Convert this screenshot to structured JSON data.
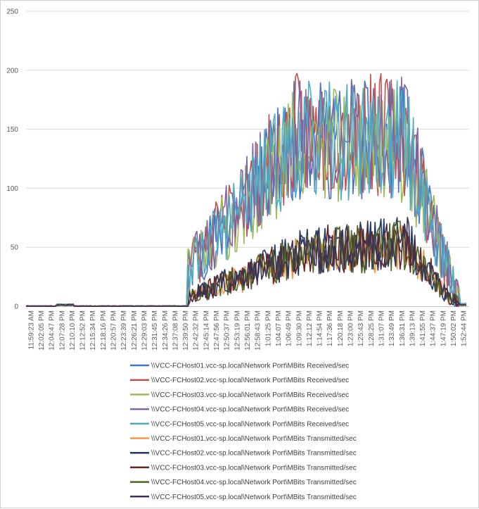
{
  "chart_data": {
    "type": "line",
    "title": "",
    "xlabel": "",
    "ylabel": "",
    "ylim": [
      0,
      250
    ],
    "yticks": [
      0,
      50,
      100,
      150,
      200,
      250
    ],
    "grid": true,
    "legend_position": "bottom",
    "x_tick_labels": [
      "11:59:23 AM",
      "12:02:05 PM",
      "12:04:47 PM",
      "12:07:28 PM",
      "12:10:10 PM",
      "12:12:52 PM",
      "12:15:34 PM",
      "12:18:16 PM",
      "12:20:57 PM",
      "12:23:39 PM",
      "12:26:21 PM",
      "12:29:03 PM",
      "12:31:45 PM",
      "12:34:26 PM",
      "12:37:08 PM",
      "12:39:50 PM",
      "12:42:32 PM",
      "12:45:14 PM",
      "12:47:56 PM",
      "12:50:37 PM",
      "12:53:19 PM",
      "12:56:01 PM",
      "12:58:43 PM",
      "1:01:25 PM",
      "1:04:07 PM",
      "1:06:49 PM",
      "1:09:30 PM",
      "1:12:12 PM",
      "1:14:54 PM",
      "1:17:36 PM",
      "1:20:18 PM",
      "1:23:00 PM",
      "1:25:43 PM",
      "1:28:25 PM",
      "1:31:07 PM",
      "1:33:49 PM",
      "1:36:31 PM",
      "1:39:13 PM",
      "1:41:55 PM",
      "1:44:37 PM",
      "1:47:19 PM",
      "1:50:02 PM",
      "1:52:44 PM"
    ],
    "series": [
      {
        "name": "\\\\VCC-FCHost01.vcc-sp.local\\Network Port\\MBits Received/sec",
        "color": "#4472C4",
        "kind": "received",
        "seed": 11,
        "peak": 1.0
      },
      {
        "name": "\\\\VCC-FCHost02.vcc-sp.local\\Network Port\\MBits Received/sec",
        "color": "#C0504D",
        "kind": "received",
        "seed": 23,
        "peak": 1.04
      },
      {
        "name": "\\\\VCC-FCHost03.vcc-sp.local\\Network Port\\MBits Received/sec",
        "color": "#9BBB59",
        "kind": "received",
        "seed": 37,
        "peak": 0.97
      },
      {
        "name": "\\\\VCC-FCHost04.vcc-sp.local\\Network Port\\MBits Received/sec",
        "color": "#8064A2",
        "kind": "received",
        "seed": 41,
        "peak": 1.02
      },
      {
        "name": "\\\\VCC-FCHost05.vcc-sp.local\\Network Port\\MBits Received/sec",
        "color": "#4BACC6",
        "kind": "received",
        "seed": 53,
        "peak": 1.0
      },
      {
        "name": "\\\\VCC-FCHost01.vcc-sp.local\\Network Port\\MBits Transmitted/sec",
        "color": "#F79646",
        "kind": "transmitted",
        "seed": 61,
        "peak": 0.95
      },
      {
        "name": "\\\\VCC-FCHost02.vcc-sp.local\\Network Port\\MBits Transmitted/sec",
        "color": "#1F3864",
        "kind": "transmitted",
        "seed": 71,
        "peak": 1.05
      },
      {
        "name": "\\\\VCC-FCHost03.vcc-sp.local\\Network Port\\MBits Transmitted/sec",
        "color": "#632523",
        "kind": "transmitted",
        "seed": 83,
        "peak": 1.02
      },
      {
        "name": "\\\\VCC-FCHost04.vcc-sp.local\\Network Port\\MBits Transmitted/sec",
        "color": "#4F6228",
        "kind": "transmitted",
        "seed": 97,
        "peak": 0.98
      },
      {
        "name": "\\\\VCC-FCHost05.vcc-sp.local\\Network Port\\MBits Transmitted/sec",
        "color": "#3F3151",
        "kind": "transmitted",
        "seed": 101,
        "peak": 1.0
      }
    ]
  }
}
